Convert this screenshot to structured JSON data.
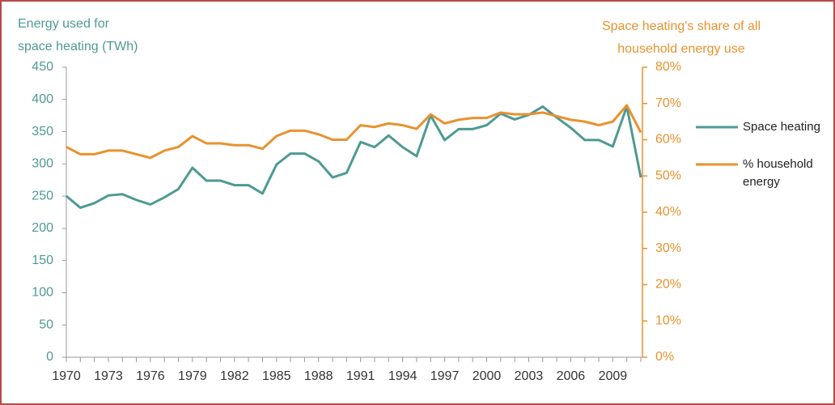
{
  "chart_data": {
    "type": "line",
    "y_label": [
      "Energy used for",
      "space heating  (TWh)"
    ],
    "y2_label": [
      "Space heating's share of all",
      "household energy use"
    ],
    "categories": [
      "1970",
      null,
      null,
      "1973",
      null,
      null,
      "1976",
      null,
      null,
      "1979",
      null,
      null,
      "1982",
      null,
      null,
      "1985",
      null,
      null,
      "1988",
      null,
      null,
      "1991",
      null,
      null,
      "1994",
      null,
      null,
      "1997",
      null,
      null,
      "2000",
      null,
      null,
      "2003",
      null,
      null,
      "2006",
      null,
      null,
      "2009",
      null,
      null
    ],
    "series": [
      {
        "name": "Space heating",
        "color": "#4e9a94",
        "values": [
          250,
          232,
          239,
          251,
          253,
          244,
          237,
          248,
          261,
          294,
          274,
          274,
          267,
          267,
          254,
          299,
          316,
          316,
          304,
          279,
          286,
          334,
          326,
          344,
          326,
          312,
          375,
          337,
          354,
          354,
          360,
          378,
          369,
          376,
          389,
          372,
          356,
          337,
          337,
          327,
          389,
          279
        ]
      },
      {
        "name": "% household energy",
        "color": "#e8922e",
        "axis": "y2",
        "values": [
          58,
          56,
          56,
          57,
          57,
          56,
          55,
          57,
          58,
          61,
          59,
          59,
          58.5,
          58.5,
          57.5,
          61,
          62.5,
          62.5,
          61.5,
          60,
          60,
          64,
          63.5,
          64.5,
          64,
          63,
          67,
          64.5,
          65.5,
          66,
          66,
          67.5,
          67,
          67,
          67.5,
          66.5,
          65.5,
          65,
          64,
          65,
          69.5,
          62
        ]
      }
    ],
    "ylim": [
      0,
      450
    ],
    "yticks": [
      0,
      50,
      100,
      150,
      200,
      250,
      300,
      350,
      400,
      450
    ],
    "y2lim": [
      0,
      80
    ],
    "y2ticks": [
      {
        "value": 0,
        "label": "0%"
      },
      {
        "value": 10,
        "label": "10%"
      },
      {
        "value": 20,
        "label": "20%"
      },
      {
        "value": 30,
        "label": "30%"
      },
      {
        "value": 40,
        "label": "40%"
      },
      {
        "value": 50,
        "label": "50%"
      },
      {
        "value": 60,
        "label": "60%"
      },
      {
        "value": 70,
        "label": "70%"
      },
      {
        "value": 80,
        "label": "80%"
      }
    ],
    "legend": "right"
  }
}
